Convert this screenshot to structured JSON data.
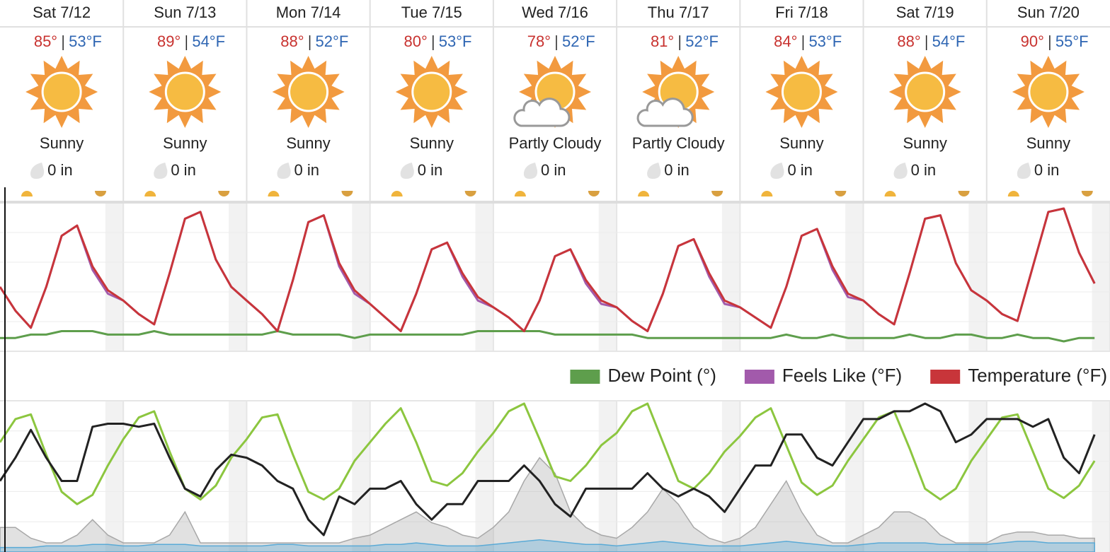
{
  "days": [
    {
      "date": "Sat 7/12",
      "high": "85°",
      "low": "53°F",
      "condition": "Sunny",
      "precip": "0 in"
    },
    {
      "date": "Sun 7/13",
      "high": "89°",
      "low": "54°F",
      "condition": "Sunny",
      "precip": "0 in"
    },
    {
      "date": "Mon 7/14",
      "high": "88°",
      "low": "52°F",
      "condition": "Sunny",
      "precip": "0 in"
    },
    {
      "date": "Tue 7/15",
      "high": "80°",
      "low": "53°F",
      "condition": "Sunny",
      "precip": "0 in"
    },
    {
      "date": "Wed 7/16",
      "high": "78°",
      "low": "52°F",
      "condition": "Partly Cloudy",
      "precip": "0 in"
    },
    {
      "date": "Thu 7/17",
      "high": "81°",
      "low": "52°F",
      "condition": "Partly Cloudy",
      "precip": "0 in"
    },
    {
      "date": "Fri 7/18",
      "high": "84°",
      "low": "53°F",
      "condition": "Sunny",
      "precip": "0 in"
    },
    {
      "date": "Sat 7/19",
      "high": "88°",
      "low": "54°F",
      "condition": "Sunny",
      "precip": "0 in"
    },
    {
      "date": "Sun 7/20",
      "high": "90°",
      "low": "55°F",
      "condition": "Sunny",
      "precip": "0 in"
    }
  ],
  "chart_data": [
    {
      "type": "line",
      "series": [
        {
          "name": "Dew Point (°)",
          "color": "#5e9e4c",
          "values": [
            51,
            51,
            52,
            52,
            53,
            53,
            53,
            52,
            52,
            52,
            53,
            52,
            52,
            52,
            52,
            52,
            52,
            52,
            53,
            52,
            52,
            52,
            52,
            51,
            52,
            52,
            52,
            52,
            52,
            52,
            52,
            53,
            53,
            53,
            53,
            53,
            52,
            52,
            52,
            52,
            52,
            52,
            51,
            51,
            51,
            51,
            51,
            51,
            51,
            51,
            51,
            52,
            51,
            51,
            52,
            51,
            51,
            51,
            51,
            52,
            51,
            51,
            52,
            52,
            51,
            51,
            52,
            51,
            51,
            50,
            51,
            51
          ]
        },
        {
          "name": "Feels Like (°F)",
          "color": "#a25aab",
          "values": [
            66,
            59,
            54,
            66,
            81,
            84,
            71,
            64,
            62,
            58,
            55,
            70,
            86,
            88,
            74,
            66,
            62,
            58,
            53,
            68,
            85,
            87,
            72,
            64,
            61,
            57,
            53,
            64,
            77,
            79,
            69,
            62,
            60,
            57,
            53,
            62,
            75,
            77,
            67,
            61,
            60,
            56,
            53,
            64,
            78,
            80,
            69,
            61,
            60,
            57,
            54,
            66,
            81,
            83,
            71,
            63,
            62,
            58,
            55,
            70,
            86,
            87,
            73,
            65,
            62,
            58,
            56,
            72,
            88,
            89,
            76,
            67
          ]
        },
        {
          "name": "Temperature (°F)",
          "color": "#c8353a",
          "values": [
            66,
            59,
            54,
            66,
            81,
            84,
            72,
            65,
            62,
            58,
            55,
            70,
            86,
            88,
            74,
            66,
            62,
            58,
            53,
            68,
            85,
            87,
            73,
            65,
            61,
            57,
            53,
            64,
            77,
            79,
            70,
            63,
            60,
            57,
            53,
            62,
            75,
            77,
            68,
            62,
            60,
            56,
            53,
            64,
            78,
            80,
            70,
            62,
            60,
            57,
            54,
            66,
            81,
            83,
            72,
            64,
            62,
            58,
            55,
            70,
            86,
            87,
            73,
            65,
            62,
            58,
            56,
            72,
            88,
            89,
            76,
            67
          ]
        }
      ],
      "legend": "top-right"
    },
    {
      "type": "line",
      "series": [
        {
          "color": "#a8a8a8",
          "area": true,
          "values": [
            15,
            15,
            8,
            5,
            5,
            10,
            20,
            10,
            5,
            5,
            5,
            10,
            25,
            5,
            5,
            5,
            5,
            5,
            5,
            5,
            5,
            5,
            5,
            8,
            10,
            15,
            20,
            25,
            18,
            15,
            10,
            8,
            15,
            25,
            45,
            60,
            50,
            25,
            15,
            10,
            8,
            15,
            25,
            40,
            30,
            15,
            8,
            5,
            8,
            15,
            30,
            45,
            25,
            10,
            5,
            5,
            10,
            15,
            25,
            25,
            20,
            10,
            5,
            5,
            5,
            10,
            12,
            12,
            10,
            10,
            8,
            8
          ]
        },
        {
          "color": "#5aaad6",
          "area": true,
          "values": [
            2,
            2,
            2,
            3,
            3,
            3,
            4,
            4,
            3,
            3,
            4,
            4,
            4,
            3,
            3,
            3,
            3,
            3,
            4,
            4,
            3,
            3,
            3,
            3,
            3,
            4,
            4,
            5,
            4,
            3,
            3,
            3,
            4,
            5,
            6,
            7,
            6,
            5,
            4,
            4,
            3,
            4,
            5,
            6,
            5,
            4,
            3,
            3,
            3,
            4,
            5,
            6,
            5,
            4,
            3,
            3,
            4,
            5,
            5,
            5,
            5,
            4,
            4,
            4,
            4,
            5,
            6,
            6,
            5,
            5,
            5,
            5
          ]
        },
        {
          "color": "#8cc63f",
          "values": [
            70,
            85,
            88,
            62,
            38,
            30,
            36,
            55,
            72,
            86,
            90,
            64,
            40,
            33,
            42,
            60,
            72,
            86,
            88,
            62,
            38,
            33,
            40,
            58,
            70,
            82,
            92,
            70,
            45,
            42,
            50,
            64,
            76,
            90,
            95,
            72,
            48,
            45,
            55,
            68,
            76,
            90,
            95,
            70,
            45,
            40,
            50,
            64,
            74,
            86,
            92,
            68,
            44,
            36,
            42,
            58,
            72,
            86,
            90,
            66,
            40,
            33,
            40,
            58,
            72,
            86,
            88,
            64,
            40,
            34,
            42,
            58
          ]
        },
        {
          "color": "#222222",
          "values": [
            45,
            60,
            78,
            60,
            45,
            45,
            80,
            82,
            82,
            80,
            82,
            60,
            40,
            35,
            52,
            62,
            60,
            55,
            45,
            40,
            20,
            10,
            35,
            30,
            40,
            40,
            45,
            30,
            20,
            30,
            30,
            45,
            45,
            45,
            55,
            45,
            30,
            22,
            40,
            40,
            40,
            40,
            50,
            40,
            35,
            40,
            35,
            25,
            40,
            55,
            55,
            75,
            75,
            60,
            55,
            70,
            85,
            85,
            90,
            90,
            95,
            90,
            70,
            75,
            85,
            85,
            85,
            80,
            85,
            60,
            50,
            75
          ]
        }
      ]
    }
  ]
}
